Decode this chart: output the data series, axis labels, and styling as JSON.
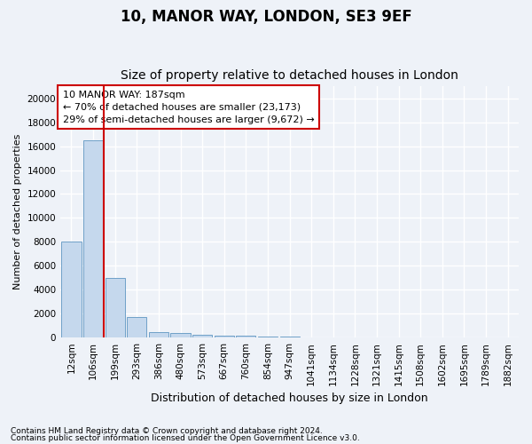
{
  "title1": "10, MANOR WAY, LONDON, SE3 9EF",
  "title2": "Size of property relative to detached houses in London",
  "xlabel": "Distribution of detached houses by size in London",
  "ylabel": "Number of detached properties",
  "categories": [
    "12sqm",
    "106sqm",
    "199sqm",
    "293sqm",
    "386sqm",
    "480sqm",
    "573sqm",
    "667sqm",
    "760sqm",
    "854sqm",
    "947sqm",
    "1041sqm",
    "1134sqm",
    "1228sqm",
    "1321sqm",
    "1415sqm",
    "1508sqm",
    "1602sqm",
    "1695sqm",
    "1789sqm",
    "1882sqm"
  ],
  "values": [
    8050,
    16500,
    5000,
    1700,
    450,
    350,
    200,
    175,
    140,
    100,
    55,
    30,
    15,
    10,
    8,
    5,
    4,
    3,
    2,
    2,
    1
  ],
  "bar_color": "#c5d8ed",
  "bar_edge_color": "#6fa0c8",
  "vline_x_index": 1,
  "vline_color": "#cc0000",
  "annotation_text": "10 MANOR WAY: 187sqm\n← 70% of detached houses are smaller (23,173)\n29% of semi-detached houses are larger (9,672) →",
  "annotation_box_color": "#ffffff",
  "annotation_box_edge_color": "#cc0000",
  "ylim": [
    0,
    21000
  ],
  "yticks": [
    0,
    2000,
    4000,
    6000,
    8000,
    10000,
    12000,
    14000,
    16000,
    18000,
    20000
  ],
  "footnote1": "Contains HM Land Registry data © Crown copyright and database right 2024.",
  "footnote2": "Contains public sector information licensed under the Open Government Licence v3.0.",
  "bg_color": "#eef2f8",
  "grid_color": "#ffffff",
  "title1_fontsize": 12,
  "title2_fontsize": 10,
  "ylabel_fontsize": 8,
  "xlabel_fontsize": 9,
  "tick_fontsize": 7.5,
  "annotation_fontsize": 8
}
